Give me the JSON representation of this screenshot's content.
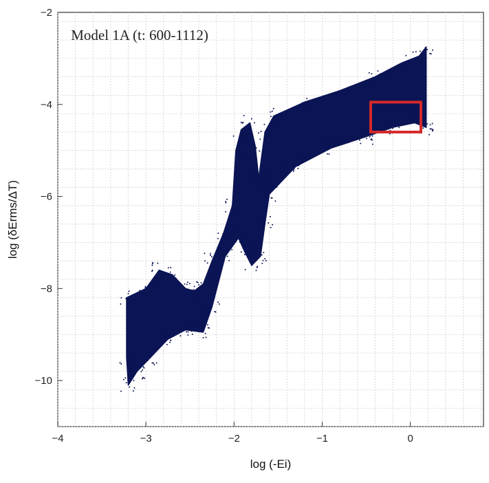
{
  "chart_data": {
    "type": "scatter",
    "title": "",
    "annotation": "Model 1A (t: 600-1112)",
    "xlabel": "log (-Ei)",
    "ylabel": "log (δErms/ΔT)",
    "xlim": [
      -4,
      0.83
    ],
    "ylim": [
      -11,
      -2
    ],
    "x_ticks": [
      -4,
      -3,
      -2,
      -1,
      0
    ],
    "x_tick_labels": [
      "−4",
      "−3",
      "−2",
      "−1",
      "0"
    ],
    "y_ticks": [
      -10,
      -8,
      -6,
      -4,
      -2
    ],
    "y_tick_labels": [
      "−10",
      "−8",
      "−6",
      "−4",
      "−2"
    ],
    "grid": true,
    "point_color": "#0b1454",
    "highlight_color": "#d42a2a",
    "highlight_box": {
      "x": [
        -0.45,
        0.12
      ],
      "y": [
        -4.6,
        -3.95
      ]
    },
    "series": [
      {
        "points_upper": [
          [
            -3.22,
            -8.2
          ],
          [
            -3.0,
            -8.0
          ],
          [
            -2.85,
            -7.6
          ],
          [
            -2.7,
            -7.7
          ],
          [
            -2.55,
            -8.0
          ],
          [
            -2.45,
            -8.05
          ],
          [
            -2.35,
            -7.9
          ],
          [
            -2.25,
            -7.4
          ],
          [
            -2.12,
            -6.8
          ],
          [
            -2.02,
            -6.2
          ],
          [
            -1.98,
            -5.0
          ],
          [
            -1.92,
            -4.55
          ],
          [
            -1.82,
            -4.4
          ],
          [
            -1.76,
            -4.9
          ],
          [
            -1.72,
            -5.6
          ],
          [
            -1.65,
            -4.6
          ],
          [
            -1.55,
            -4.25
          ],
          [
            -1.2,
            -3.95
          ],
          [
            -0.8,
            -3.7
          ],
          [
            -0.4,
            -3.4
          ],
          [
            -0.1,
            -3.1
          ],
          [
            0.1,
            -2.95
          ],
          [
            0.18,
            -2.75
          ]
        ],
        "points_lower": [
          [
            0.18,
            -4.5
          ],
          [
            0.05,
            -4.4
          ],
          [
            -0.2,
            -4.5
          ],
          [
            -0.5,
            -4.7
          ],
          [
            -0.9,
            -4.95
          ],
          [
            -1.3,
            -5.35
          ],
          [
            -1.6,
            -5.95
          ],
          [
            -1.65,
            -6.6
          ],
          [
            -1.7,
            -7.3
          ],
          [
            -1.8,
            -7.5
          ],
          [
            -1.88,
            -7.2
          ],
          [
            -1.95,
            -6.9
          ],
          [
            -2.1,
            -7.3
          ],
          [
            -2.25,
            -8.4
          ],
          [
            -2.35,
            -8.95
          ],
          [
            -2.55,
            -8.9
          ],
          [
            -2.75,
            -9.1
          ],
          [
            -2.95,
            -9.5
          ],
          [
            -3.1,
            -9.8
          ],
          [
            -3.2,
            -10.1
          ],
          [
            -3.22,
            -9.5
          ]
        ]
      }
    ]
  }
}
